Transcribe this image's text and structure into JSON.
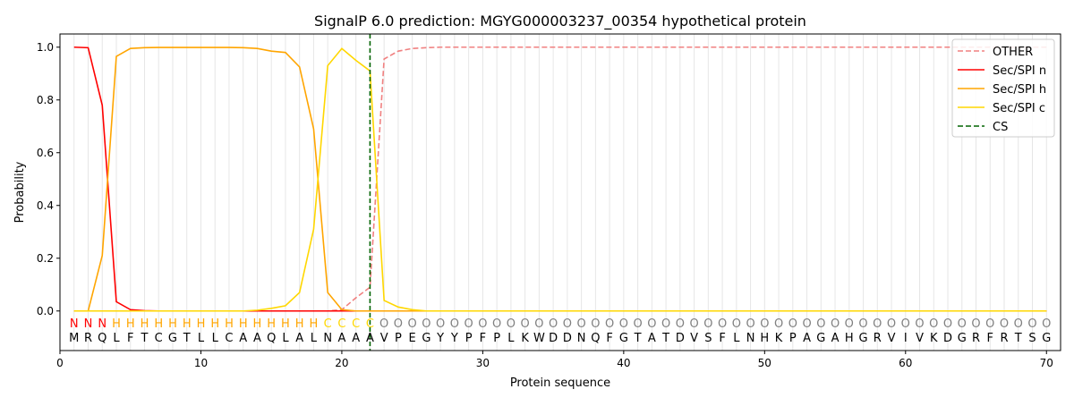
{
  "chart_data": {
    "type": "line",
    "title": "SignalP 6.0 prediction: MGYG000003237_00354 hypothetical protein",
    "xlabel": "Protein sequence",
    "ylabel": "Probability",
    "xlim": [
      0,
      71
    ],
    "ylim": [
      -0.15,
      1.05
    ],
    "xticks": [
      0,
      10,
      20,
      30,
      40,
      50,
      60,
      70
    ],
    "yticks": [
      0.0,
      0.2,
      0.4,
      0.6,
      0.8,
      1.0
    ],
    "grid": "vertical lines at each residue",
    "legend_position": "top-right",
    "sequence": "MRQLFTCGTLLCAAQLALNAAAVPEGYYPFPLKWDDNQFGTATDVSFLNHKPAGAHGRVIVKDGRFRTSG",
    "region_labels": "NNNHHHHHHHHHHHHHHHCCCCOOOOOOOOOOOOOOOOOOOOOOOOOOOOOOOOOOOOOOOOOOOOOOOO",
    "region_label_colors": {
      "N": "#ff0000",
      "H": "#ffa500",
      "C": "#ffd700",
      "O": "#808080"
    },
    "cleavage_site": 22,
    "series": [
      {
        "name": "OTHER",
        "color": "#f08080",
        "dash": true,
        "values": [
          0,
          0,
          0,
          0,
          0,
          0,
          0,
          0,
          0,
          0,
          0,
          0,
          0,
          0,
          0,
          0,
          0,
          0,
          0,
          0.005,
          0.05,
          0.09,
          0.955,
          0.985,
          0.995,
          0.998,
          1,
          1,
          1,
          1,
          1,
          1,
          1,
          1,
          1,
          1,
          1,
          1,
          1,
          1,
          1,
          1,
          1,
          1,
          1,
          1,
          1,
          1,
          1,
          1,
          1,
          1,
          1,
          1,
          1,
          1,
          1,
          1,
          1,
          1,
          1,
          1,
          1,
          1,
          1,
          1,
          1,
          1,
          1,
          1
        ]
      },
      {
        "name": "Sec/SPI n",
        "color": "#ff0000",
        "dash": false,
        "values": [
          1.0,
          0.998,
          0.78,
          0.035,
          0.005,
          0.001,
          0,
          0,
          0,
          0,
          0,
          0,
          0,
          0,
          0,
          0,
          0,
          0,
          0,
          0,
          0,
          0,
          0,
          0,
          0,
          0,
          0,
          0,
          0,
          0,
          0,
          0,
          0,
          0,
          0,
          0,
          0,
          0,
          0,
          0,
          0,
          0,
          0,
          0,
          0,
          0,
          0,
          0,
          0,
          0,
          0,
          0,
          0,
          0,
          0,
          0,
          0,
          0,
          0,
          0,
          0,
          0,
          0,
          0,
          0,
          0,
          0,
          0,
          0,
          0
        ]
      },
      {
        "name": "Sec/SPI h",
        "color": "#ffa500",
        "dash": false,
        "values": [
          0,
          0,
          0.21,
          0.965,
          0.995,
          0.998,
          0.999,
          0.999,
          0.999,
          0.999,
          0.999,
          0.999,
          0.998,
          0.995,
          0.985,
          0.98,
          0.925,
          0.69,
          0.07,
          0.005,
          0,
          0,
          0,
          0,
          0,
          0,
          0,
          0,
          0,
          0,
          0,
          0,
          0,
          0,
          0,
          0,
          0,
          0,
          0,
          0,
          0,
          0,
          0,
          0,
          0,
          0,
          0,
          0,
          0,
          0,
          0,
          0,
          0,
          0,
          0,
          0,
          0,
          0,
          0,
          0,
          0,
          0,
          0,
          0,
          0,
          0,
          0,
          0,
          0,
          0
        ]
      },
      {
        "name": "Sec/SPI c",
        "color": "#ffd700",
        "dash": false,
        "values": [
          0,
          0,
          0,
          0,
          0,
          0,
          0,
          0,
          0,
          0,
          0,
          0,
          0,
          0.003,
          0.01,
          0.02,
          0.07,
          0.31,
          0.93,
          0.995,
          0.95,
          0.91,
          0.04,
          0.015,
          0.005,
          0,
          0,
          0,
          0,
          0,
          0,
          0,
          0,
          0,
          0,
          0,
          0,
          0,
          0,
          0,
          0,
          0,
          0,
          0,
          0,
          0,
          0,
          0,
          0,
          0,
          0,
          0,
          0,
          0,
          0,
          0,
          0,
          0,
          0,
          0,
          0,
          0,
          0,
          0,
          0,
          0,
          0,
          0,
          0,
          0
        ]
      }
    ],
    "cs_legend": {
      "name": "CS",
      "color": "#006400"
    }
  }
}
